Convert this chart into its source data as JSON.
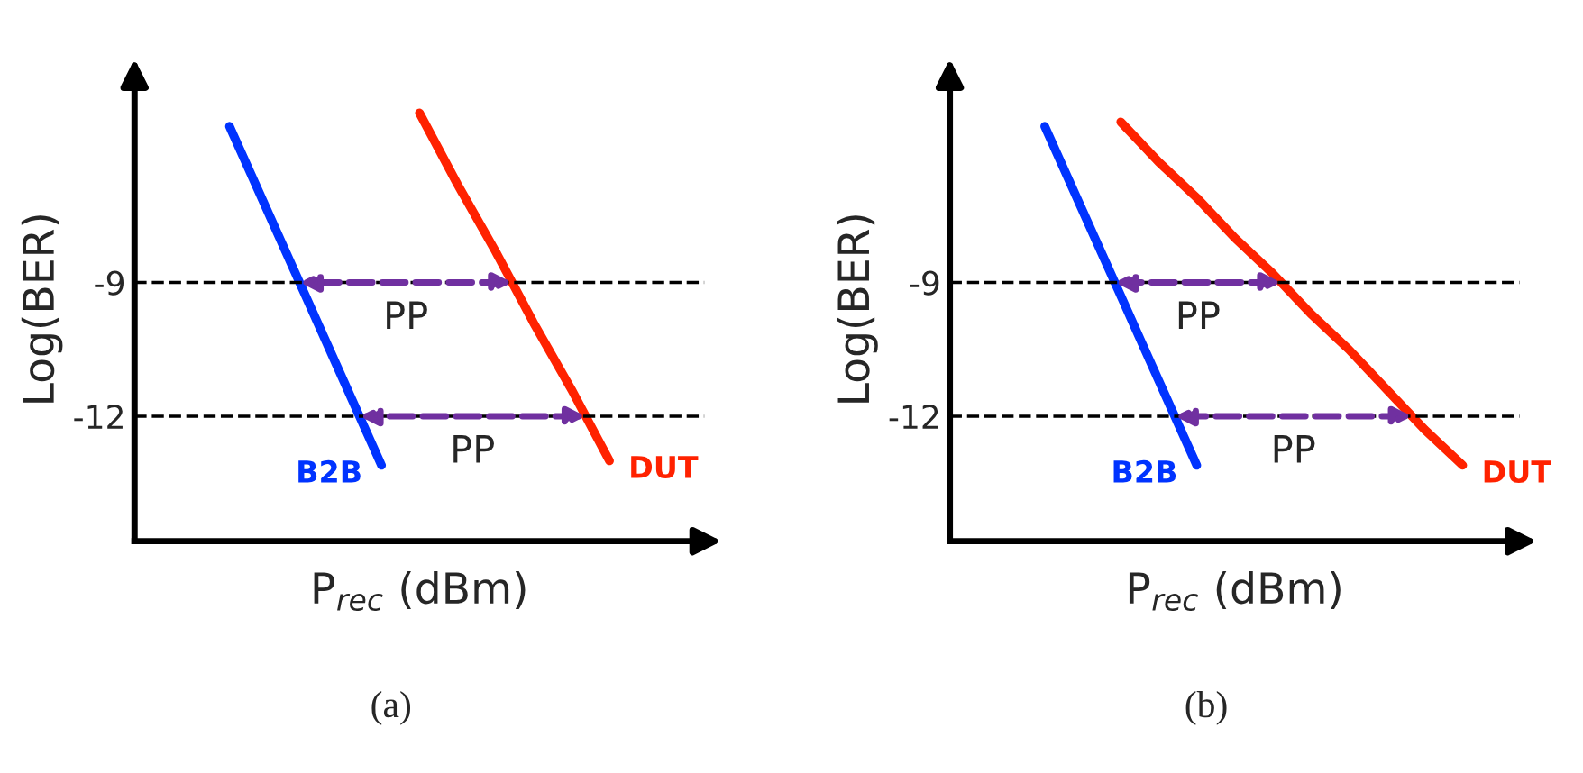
{
  "chart_data": [
    {
      "type": "line",
      "title": "(a)",
      "xlabel": "P$_{rec}$ (dBm)",
      "ylabel": "Log(BER)",
      "categories": [
        null,
        null,
        null,
        null,
        null,
        null,
        null,
        null,
        null,
        null,
        null,
        null,
        null,
        null,
        null
      ],
      "series": [
        {
          "name": "B2B",
          "color": "#0033ff",
          "values": [
            null,
            null,
            -5.5,
            -7.4,
            -9.3,
            -11.2,
            -13.1,
            null,
            null,
            null,
            null,
            null,
            null,
            null,
            null
          ]
        },
        {
          "name": "DUT",
          "color": "#ff2200",
          "values": [
            null,
            null,
            null,
            null,
            null,
            null,
            null,
            -5.2,
            -6.8,
            -8.3,
            -9.9,
            -11.4,
            -13.0,
            null,
            null
          ]
        }
      ],
      "ylim": [
        -14.8,
        -4.4
      ],
      "yticks": [
        -9,
        -12
      ],
      "tick_labels": "y",
      "legend": false,
      "grid": false,
      "marker": "none",
      "line_style": "solid",
      "ref_lines": [
        {
          "axis": "y",
          "value": -9,
          "color": "#000000",
          "line_style": "dashed"
        },
        {
          "axis": "y",
          "value": -12,
          "color": "#000000",
          "line_style": "dashed"
        }
      ],
      "annotations": [
        {
          "text": "PP",
          "y": -9
        },
        {
          "text": "PP",
          "y": -12
        }
      ]
    },
    {
      "type": "line",
      "title": "(b)",
      "xlabel": "P$_{rec}$ (dBm)",
      "ylabel": "Log(BER)",
      "categories": [
        null,
        null,
        null,
        null,
        null,
        null,
        null,
        null,
        null,
        null,
        null,
        null,
        null,
        null,
        null
      ],
      "series": [
        {
          "name": "B2B",
          "color": "#0033ff",
          "values": [
            null,
            null,
            -5.5,
            -7.4,
            -9.3,
            -11.2,
            -13.1,
            null,
            null,
            null,
            null,
            null,
            null,
            null,
            null
          ]
        },
        {
          "name": "DUT",
          "color": "#ff2200",
          "values": [
            null,
            null,
            null,
            null,
            -5.4,
            -6.3,
            -7.1,
            -8.0,
            -8.8,
            -9.7,
            -10.5,
            -11.4,
            -12.3,
            -13.1,
            null
          ]
        }
      ],
      "ylim": [
        -14.8,
        -4.4
      ],
      "yticks": [
        -9,
        -12
      ],
      "tick_labels": "y",
      "legend": false,
      "grid": false,
      "marker": "none",
      "line_style": "solid",
      "ref_lines": [
        {
          "axis": "y",
          "value": -9,
          "color": "#000000",
          "line_style": "dashed"
        },
        {
          "axis": "y",
          "value": -12,
          "color": "#000000",
          "line_style": "dashed"
        }
      ],
      "annotations": [
        {
          "text": "PP",
          "y": -9
        },
        {
          "text": "PP",
          "y": -12
        }
      ]
    }
  ]
}
